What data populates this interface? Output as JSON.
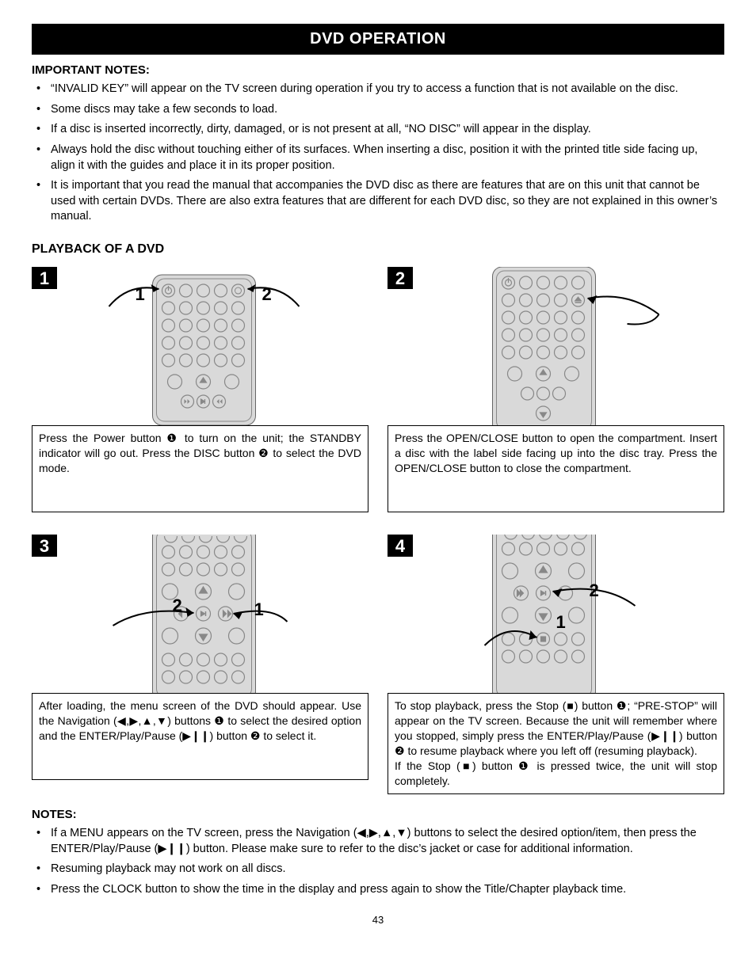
{
  "title": "DVD OPERATION",
  "important_heading": "IMPORTANT NOTES:",
  "important_notes": [
    "“INVALID KEY”  will appear on the TV screen during operation if you try to access a function that is not available on the disc.",
    "Some discs may take a few seconds to load.",
    "If a disc is inserted incorrectly, dirty, damaged, or is not present at all, “NO DISC” will appear in the display.",
    "Always hold the disc without touching either of its surfaces. When inserting a disc, position it with the printed title side facing up, align it with the guides and place it in its proper position.",
    "It is important that you read the manual that accompanies the DVD disc as there are features that are on this unit that cannot be used with certain DVDs. There are also extra features that are different for each DVD disc, so they are not explained in this owner’s manual."
  ],
  "playback_heading": "PLAYBACK OF A DVD",
  "steps": [
    {
      "num": "1",
      "caption": "Press the Power button ❶ to turn on the unit; the STANDBY indicator will go out. Press the DISC button ❷ to select the DVD mode."
    },
    {
      "num": "2",
      "caption": "Press the OPEN/CLOSE button to open the compartment. Insert a disc with the label side facing up into the disc tray. Press the OPEN/CLOSE button to close the compartment."
    },
    {
      "num": "3",
      "caption": "After loading, the menu screen of the DVD should appear. Use the Navigation (◀,▶,▲,▼) buttons ❶ to select the desired option and the ENTER/Play/Pause (▶❙❙) button ❷ to select it."
    },
    {
      "num": "4",
      "caption": "To stop playback, press the Stop (■) button ❶; “PRE-STOP” will appear on the TV screen. Because the unit will remember where you stopped, simply press the ENTER/Play/Pause (▶❙❙) button ❷ to resume playback where you left off (resuming playback).\nIf the Stop (■) button ❶ is pressed twice, the unit will stop completely."
    }
  ],
  "notes_heading": "NOTES:",
  "bottom_notes": [
    "If a MENU appears on the TV screen, press the Navigation (◀,▶,▲,▼) buttons to select the desired option/item, then press the ENTER/Play/Pause (▶❙❙) button. Please make sure to refer to the disc’s jacket or case for additional information.",
    "Resuming playback may not work on all discs.",
    "Press the CLOCK button to show the time in the display and press again to show the Title/Chapter playback time."
  ],
  "page_number": "43",
  "colors": {
    "page_bg": "#ffffff",
    "text": "#000000",
    "title_bg": "#000000",
    "title_text": "#ffffff",
    "remote_fill": "#d9d9d9",
    "remote_stroke": "#666666",
    "button_stroke": "#888888"
  }
}
